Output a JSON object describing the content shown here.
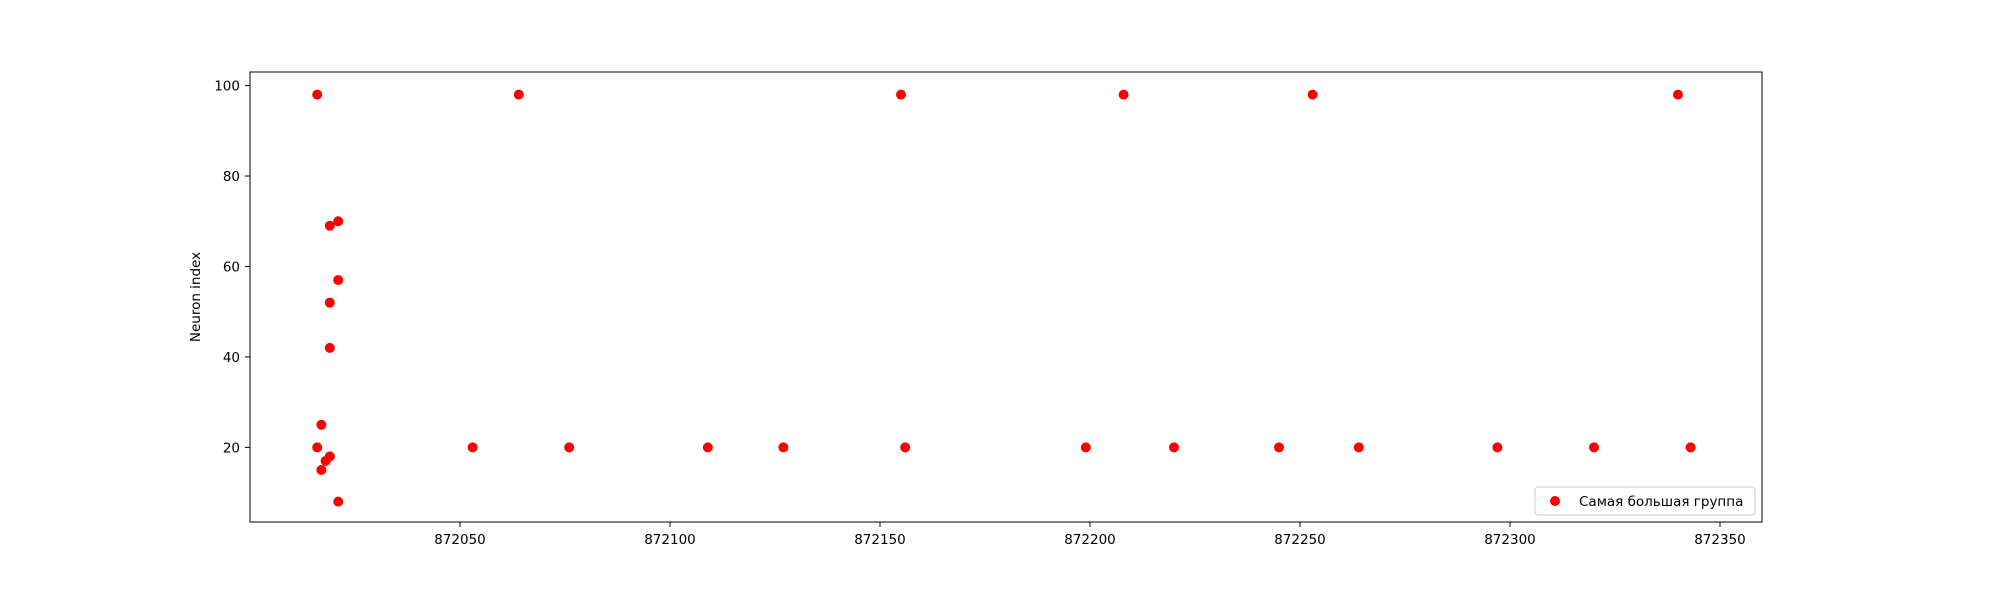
{
  "chart_data": {
    "type": "scatter",
    "title": "",
    "xlabel": "",
    "ylabel": "Neuron index",
    "xlim": [
      872000,
      872360
    ],
    "ylim": [
      3.5,
      103
    ],
    "xticks": [
      872050,
      872100,
      872150,
      872200,
      872250,
      872300,
      872350
    ],
    "yticks": [
      20,
      40,
      60,
      80,
      100
    ],
    "grid": false,
    "legend_position": "lower-right",
    "series": [
      {
        "name": "Самая большая группа",
        "color": "#ff0000",
        "points": [
          {
            "x": 872016,
            "y": 98
          },
          {
            "x": 872064,
            "y": 98
          },
          {
            "x": 872155,
            "y": 98
          },
          {
            "x": 872208,
            "y": 98
          },
          {
            "x": 872253,
            "y": 98
          },
          {
            "x": 872340,
            "y": 98
          },
          {
            "x": 872021,
            "y": 70
          },
          {
            "x": 872019,
            "y": 69
          },
          {
            "x": 872021,
            "y": 57
          },
          {
            "x": 872019,
            "y": 52
          },
          {
            "x": 872019,
            "y": 42
          },
          {
            "x": 872017,
            "y": 25
          },
          {
            "x": 872016,
            "y": 20
          },
          {
            "x": 872019,
            "y": 18
          },
          {
            "x": 872018,
            "y": 17
          },
          {
            "x": 872017,
            "y": 15
          },
          {
            "x": 872021,
            "y": 8
          },
          {
            "x": 872053,
            "y": 20
          },
          {
            "x": 872076,
            "y": 20
          },
          {
            "x": 872109,
            "y": 20
          },
          {
            "x": 872127,
            "y": 20
          },
          {
            "x": 872156,
            "y": 20
          },
          {
            "x": 872199,
            "y": 20
          },
          {
            "x": 872220,
            "y": 20
          },
          {
            "x": 872245,
            "y": 20
          },
          {
            "x": 872264,
            "y": 20
          },
          {
            "x": 872297,
            "y": 20
          },
          {
            "x": 872320,
            "y": 20
          },
          {
            "x": 872343,
            "y": 20
          }
        ]
      }
    ]
  }
}
